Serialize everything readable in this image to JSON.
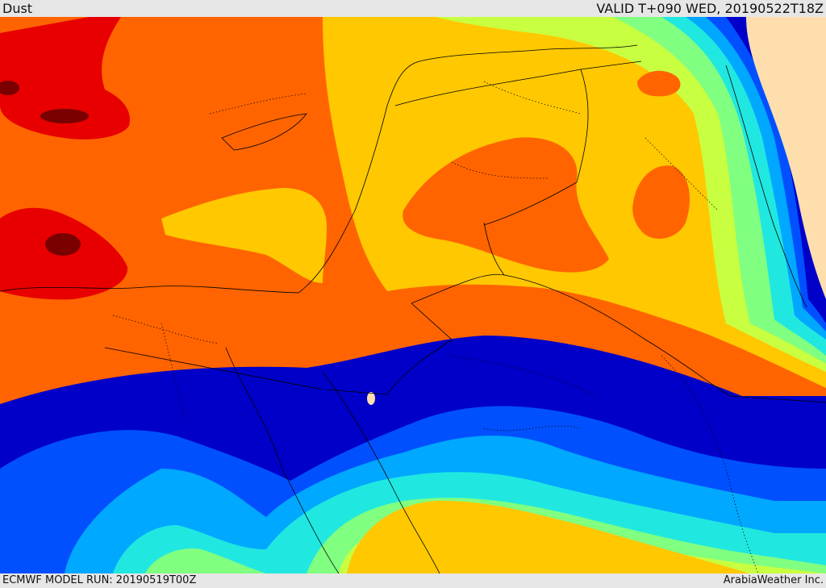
{
  "header": {
    "title": "Dust",
    "valid_label": "VALID T+090 WED, 20190522T18Z"
  },
  "footer": {
    "model_run": "ECMWF MODEL RUN: 20190519T00Z",
    "credit": "ArabiaWeather Inc."
  },
  "map": {
    "field": "Dust",
    "palette": [
      "#0000c8",
      "#0050ff",
      "#00a8ff",
      "#20e8e0",
      "#80ff80",
      "#c8ff40",
      "#ffc800",
      "#ff6400",
      "#e80000",
      "#7a0000"
    ],
    "land_beige": "#ffdead",
    "dust_max_color": "#7a0000",
    "dust_min_color": "#0000c8"
  }
}
